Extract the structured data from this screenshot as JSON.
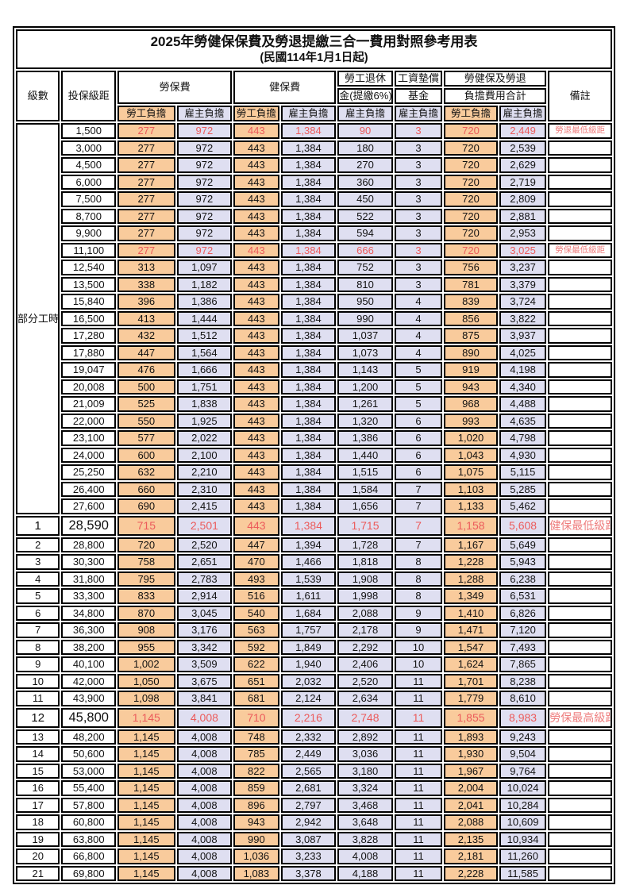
{
  "title": "2025年勞健保保費及勞退提繳三合一費用對照參考用表",
  "subtitle": "(民國114年1月1日起)",
  "colors": {
    "worker_bg": "#F9CB9C",
    "employer_bg": "#DFDFF1",
    "highlight_text": "#EC5B5B",
    "remark_text": "#EE7C7C",
    "border": "#000000"
  },
  "table": {
    "columns": {
      "level": "級數",
      "bracket": "投保級距",
      "labor_ins": "勞保費",
      "health_ins": "健保費",
      "pension_line1": "勞工退休",
      "pension_line2": "金(提繳6%)",
      "wage_fund_line1": "工資墊償",
      "wage_fund_line2": "基金",
      "total_line1": "勞健保及勞退",
      "total_line2": "負擔費用合計",
      "remark": "備註",
      "worker": "勞工負擔",
      "employer": "雇主負擔"
    },
    "part_time_label": "部分工時",
    "part_time_span": 23,
    "rows": [
      {
        "level": "部分工時",
        "bracket": "1,500",
        "values": [
          "277",
          "972",
          "443",
          "1,384",
          "90",
          "3",
          "720",
          "2,449"
        ],
        "remark": "勞退最低級距",
        "hl": true,
        "big": false
      },
      {
        "level": null,
        "bracket": "3,000",
        "values": [
          "277",
          "972",
          "443",
          "1,384",
          "180",
          "3",
          "720",
          "2,539"
        ],
        "remark": "",
        "hl": false,
        "big": false
      },
      {
        "level": null,
        "bracket": "4,500",
        "values": [
          "277",
          "972",
          "443",
          "1,384",
          "270",
          "3",
          "720",
          "2,629"
        ],
        "remark": "",
        "hl": false,
        "big": false
      },
      {
        "level": null,
        "bracket": "6,000",
        "values": [
          "277",
          "972",
          "443",
          "1,384",
          "360",
          "3",
          "720",
          "2,719"
        ],
        "remark": "",
        "hl": false,
        "big": false
      },
      {
        "level": null,
        "bracket": "7,500",
        "values": [
          "277",
          "972",
          "443",
          "1,384",
          "450",
          "3",
          "720",
          "2,809"
        ],
        "remark": "",
        "hl": false,
        "big": false
      },
      {
        "level": null,
        "bracket": "8,700",
        "values": [
          "277",
          "972",
          "443",
          "1,384",
          "522",
          "3",
          "720",
          "2,881"
        ],
        "remark": "",
        "hl": false,
        "big": false
      },
      {
        "level": null,
        "bracket": "9,900",
        "values": [
          "277",
          "972",
          "443",
          "1,384",
          "594",
          "3",
          "720",
          "2,953"
        ],
        "remark": "",
        "hl": false,
        "big": false
      },
      {
        "level": null,
        "bracket": "11,100",
        "values": [
          "277",
          "972",
          "443",
          "1,384",
          "666",
          "3",
          "720",
          "3,025"
        ],
        "remark": "勞保最低級距",
        "hl": true,
        "big": false
      },
      {
        "level": null,
        "bracket": "12,540",
        "values": [
          "313",
          "1,097",
          "443",
          "1,384",
          "752",
          "3",
          "756",
          "3,237"
        ],
        "remark": "",
        "hl": false,
        "big": false
      },
      {
        "level": null,
        "bracket": "13,500",
        "values": [
          "338",
          "1,182",
          "443",
          "1,384",
          "810",
          "3",
          "781",
          "3,379"
        ],
        "remark": "",
        "hl": false,
        "big": false
      },
      {
        "level": null,
        "bracket": "15,840",
        "values": [
          "396",
          "1,386",
          "443",
          "1,384",
          "950",
          "4",
          "839",
          "3,724"
        ],
        "remark": "",
        "hl": false,
        "big": false
      },
      {
        "level": null,
        "bracket": "16,500",
        "values": [
          "413",
          "1,444",
          "443",
          "1,384",
          "990",
          "4",
          "856",
          "3,822"
        ],
        "remark": "",
        "hl": false,
        "big": false
      },
      {
        "level": null,
        "bracket": "17,280",
        "values": [
          "432",
          "1,512",
          "443",
          "1,384",
          "1,037",
          "4",
          "875",
          "3,937"
        ],
        "remark": "",
        "hl": false,
        "big": false
      },
      {
        "level": null,
        "bracket": "17,880",
        "values": [
          "447",
          "1,564",
          "443",
          "1,384",
          "1,073",
          "4",
          "890",
          "4,025"
        ],
        "remark": "",
        "hl": false,
        "big": false
      },
      {
        "level": null,
        "bracket": "19,047",
        "values": [
          "476",
          "1,666",
          "443",
          "1,384",
          "1,143",
          "5",
          "919",
          "4,198"
        ],
        "remark": "",
        "hl": false,
        "big": false
      },
      {
        "level": null,
        "bracket": "20,008",
        "values": [
          "500",
          "1,751",
          "443",
          "1,384",
          "1,200",
          "5",
          "943",
          "4,340"
        ],
        "remark": "",
        "hl": false,
        "big": false
      },
      {
        "level": null,
        "bracket": "21,009",
        "values": [
          "525",
          "1,838",
          "443",
          "1,384",
          "1,261",
          "5",
          "968",
          "4,488"
        ],
        "remark": "",
        "hl": false,
        "big": false
      },
      {
        "level": null,
        "bracket": "22,000",
        "values": [
          "550",
          "1,925",
          "443",
          "1,384",
          "1,320",
          "6",
          "993",
          "4,635"
        ],
        "remark": "",
        "hl": false,
        "big": false
      },
      {
        "level": null,
        "bracket": "23,100",
        "values": [
          "577",
          "2,022",
          "443",
          "1,384",
          "1,386",
          "6",
          "1,020",
          "4,798"
        ],
        "remark": "",
        "hl": false,
        "big": false
      },
      {
        "level": null,
        "bracket": "24,000",
        "values": [
          "600",
          "2,100",
          "443",
          "1,384",
          "1,440",
          "6",
          "1,043",
          "4,930"
        ],
        "remark": "",
        "hl": false,
        "big": false
      },
      {
        "level": null,
        "bracket": "25,250",
        "values": [
          "632",
          "2,210",
          "443",
          "1,384",
          "1,515",
          "6",
          "1,075",
          "5,115"
        ],
        "remark": "",
        "hl": false,
        "big": false
      },
      {
        "level": null,
        "bracket": "26,400",
        "values": [
          "660",
          "2,310",
          "443",
          "1,384",
          "1,584",
          "7",
          "1,103",
          "5,285"
        ],
        "remark": "",
        "hl": false,
        "big": false
      },
      {
        "level": null,
        "bracket": "27,600",
        "values": [
          "690",
          "2,415",
          "443",
          "1,384",
          "1,656",
          "7",
          "1,133",
          "5,462"
        ],
        "remark": "",
        "hl": false,
        "big": false
      },
      {
        "level": "1",
        "bracket": "28,590",
        "values": [
          "715",
          "2,501",
          "443",
          "1,384",
          "1,715",
          "7",
          "1,158",
          "5,608"
        ],
        "remark": "健保最低級距",
        "hl": true,
        "big": true
      },
      {
        "level": "2",
        "bracket": "28,800",
        "values": [
          "720",
          "2,520",
          "447",
          "1,394",
          "1,728",
          "7",
          "1,167",
          "5,649"
        ],
        "remark": "",
        "hl": false,
        "big": false
      },
      {
        "level": "3",
        "bracket": "30,300",
        "values": [
          "758",
          "2,651",
          "470",
          "1,466",
          "1,818",
          "8",
          "1,228",
          "5,943"
        ],
        "remark": "",
        "hl": false,
        "big": false
      },
      {
        "level": "4",
        "bracket": "31,800",
        "values": [
          "795",
          "2,783",
          "493",
          "1,539",
          "1,908",
          "8",
          "1,288",
          "6,238"
        ],
        "remark": "",
        "hl": false,
        "big": false
      },
      {
        "level": "5",
        "bracket": "33,300",
        "values": [
          "833",
          "2,914",
          "516",
          "1,611",
          "1,998",
          "8",
          "1,349",
          "6,531"
        ],
        "remark": "",
        "hl": false,
        "big": false
      },
      {
        "level": "6",
        "bracket": "34,800",
        "values": [
          "870",
          "3,045",
          "540",
          "1,684",
          "2,088",
          "9",
          "1,410",
          "6,826"
        ],
        "remark": "",
        "hl": false,
        "big": false
      },
      {
        "level": "7",
        "bracket": "36,300",
        "values": [
          "908",
          "3,176",
          "563",
          "1,757",
          "2,178",
          "9",
          "1,471",
          "7,120"
        ],
        "remark": "",
        "hl": false,
        "big": false
      },
      {
        "level": "8",
        "bracket": "38,200",
        "values": [
          "955",
          "3,342",
          "592",
          "1,849",
          "2,292",
          "10",
          "1,547",
          "7,493"
        ],
        "remark": "",
        "hl": false,
        "big": false
      },
      {
        "level": "9",
        "bracket": "40,100",
        "values": [
          "1,002",
          "3,509",
          "622",
          "1,940",
          "2,406",
          "10",
          "1,624",
          "7,865"
        ],
        "remark": "",
        "hl": false,
        "big": false
      },
      {
        "level": "10",
        "bracket": "42,000",
        "values": [
          "1,050",
          "3,675",
          "651",
          "2,032",
          "2,520",
          "11",
          "1,701",
          "8,238"
        ],
        "remark": "",
        "hl": false,
        "big": false
      },
      {
        "level": "11",
        "bracket": "43,900",
        "values": [
          "1,098",
          "3,841",
          "681",
          "2,124",
          "2,634",
          "11",
          "1,779",
          "8,610"
        ],
        "remark": "",
        "hl": false,
        "big": false
      },
      {
        "level": "12",
        "bracket": "45,800",
        "values": [
          "1,145",
          "4,008",
          "710",
          "2,216",
          "2,748",
          "11",
          "1,855",
          "8,983"
        ],
        "remark": "勞保最高級距",
        "hl": true,
        "big": true
      },
      {
        "level": "13",
        "bracket": "48,200",
        "values": [
          "1,145",
          "4,008",
          "748",
          "2,332",
          "2,892",
          "11",
          "1,893",
          "9,243"
        ],
        "remark": "",
        "hl": false,
        "big": false
      },
      {
        "level": "14",
        "bracket": "50,600",
        "values": [
          "1,145",
          "4,008",
          "785",
          "2,449",
          "3,036",
          "11",
          "1,930",
          "9,504"
        ],
        "remark": "",
        "hl": false,
        "big": false
      },
      {
        "level": "15",
        "bracket": "53,000",
        "values": [
          "1,145",
          "4,008",
          "822",
          "2,565",
          "3,180",
          "11",
          "1,967",
          "9,764"
        ],
        "remark": "",
        "hl": false,
        "big": false
      },
      {
        "level": "16",
        "bracket": "55,400",
        "values": [
          "1,145",
          "4,008",
          "859",
          "2,681",
          "3,324",
          "11",
          "2,004",
          "10,024"
        ],
        "remark": "",
        "hl": false,
        "big": false
      },
      {
        "level": "17",
        "bracket": "57,800",
        "values": [
          "1,145",
          "4,008",
          "896",
          "2,797",
          "3,468",
          "11",
          "2,041",
          "10,284"
        ],
        "remark": "",
        "hl": false,
        "big": false
      },
      {
        "level": "18",
        "bracket": "60,800",
        "values": [
          "1,145",
          "4,008",
          "943",
          "2,942",
          "3,648",
          "11",
          "2,088",
          "10,609"
        ],
        "remark": "",
        "hl": false,
        "big": false
      },
      {
        "level": "19",
        "bracket": "63,800",
        "values": [
          "1,145",
          "4,008",
          "990",
          "3,087",
          "3,828",
          "11",
          "2,135",
          "10,934"
        ],
        "remark": "",
        "hl": false,
        "big": false
      },
      {
        "level": "20",
        "bracket": "66,800",
        "values": [
          "1,145",
          "4,008",
          "1,036",
          "3,233",
          "4,008",
          "11",
          "2,181",
          "11,260"
        ],
        "remark": "",
        "hl": false,
        "big": false
      },
      {
        "level": "21",
        "bracket": "69,800",
        "values": [
          "1,145",
          "4,008",
          "1,083",
          "3,378",
          "4,188",
          "11",
          "2,228",
          "11,585"
        ],
        "remark": "",
        "hl": false,
        "big": false
      }
    ]
  }
}
